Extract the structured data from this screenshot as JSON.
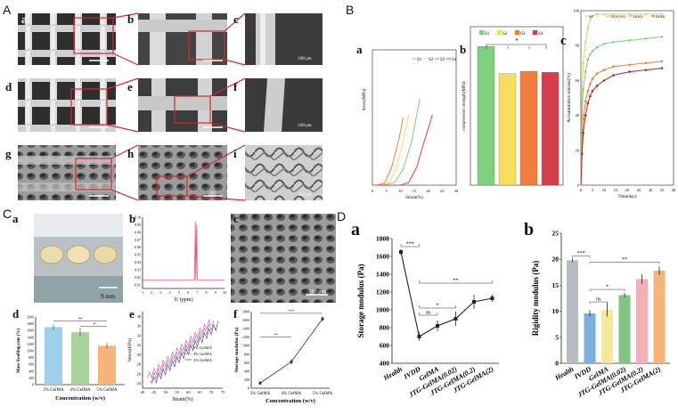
{
  "sections": {
    "A": "A",
    "B": "B",
    "C": "C",
    "D": "D"
  },
  "panel_letters": {
    "Aa": "a",
    "Ab": "b",
    "Ac": "c",
    "Ad": "d",
    "Ae": "e",
    "Af": "f",
    "Ag": "g",
    "Ah": "h",
    "Ai": "i",
    "Ba": "a",
    "Bb": "b",
    "Bc": "c",
    "Ca": "a",
    "Cb": "b",
    "Cc": "c",
    "Cd": "d",
    "Ce": "e",
    "Cf": "f",
    "Da": "a",
    "Db": "b"
  },
  "scale_bars": {
    "Ac": "100 μm",
    "Af": "100 μm",
    "Ai": "100 μm",
    "Ah": "200",
    "Ca": "9 mm",
    "Cc": "100 μm"
  },
  "colors": {
    "S1": "#7ed07f",
    "S2": "#f6dd5e",
    "S3": "#f07d3e",
    "S4": "#d53f4c",
    "red": "#d62728"
  },
  "chart_data": [
    {
      "id": "Ba",
      "type": "line",
      "ylabel": "Stress(MPa)",
      "xlabel": "Strain(%)",
      "xticks": [
        "0",
        "5",
        "10",
        "15",
        "20",
        "25",
        "30"
      ],
      "legend": [
        "S1",
        "S2",
        "S3",
        "S4"
      ],
      "series": [
        {
          "name": "S1",
          "x": [
            0,
            4,
            8,
            11,
            14,
            17
          ],
          "y": [
            0,
            0,
            0.2,
            1.2,
            3.2,
            6.4
          ]
        },
        {
          "name": "S2",
          "x": [
            0,
            3,
            6,
            8.5,
            11,
            13
          ],
          "y": [
            0,
            0,
            0.2,
            1.2,
            3.2,
            5.2
          ]
        },
        {
          "name": "S3",
          "x": [
            0,
            2,
            4.5,
            7,
            9.5,
            11
          ],
          "y": [
            0,
            0,
            0.2,
            1.4,
            3.4,
            5.0
          ]
        },
        {
          "name": "S4",
          "x": [
            0,
            10,
            13,
            16,
            18.5,
            21.5
          ],
          "y": [
            0,
            0,
            0.2,
            1.4,
            3.2,
            5.2
          ]
        }
      ],
      "xlim": [
        0,
        30
      ],
      "ylim": [
        0,
        10
      ]
    },
    {
      "id": "Bb",
      "type": "bar",
      "ylabel": "compressive strength(MPa)",
      "categories": [
        "S1",
        "S2",
        "S3",
        "S4"
      ],
      "values": [
        28,
        22.5,
        23,
        22.8
      ],
      "ylim": [
        0,
        32
      ],
      "sig": "*"
    },
    {
      "id": "Bc",
      "type": "line",
      "ylabel": "Accumulative release(%)",
      "xlabel": "Time(day)",
      "xticks": [
        "0",
        "5",
        "10",
        "15",
        "20",
        "25",
        "30",
        "35",
        "40"
      ],
      "yticks": [
        "0",
        "20",
        "40",
        "60",
        "80",
        "100"
      ],
      "legend": [
        "S4",
        "IS(S1/S3)",
        "IS(S3)",
        "IS(S4)"
      ],
      "series": [
        {
          "name": "S4",
          "color": "#f6c85e",
          "x": [
            0,
            0.5,
            1,
            2,
            3,
            4,
            5,
            7,
            10,
            14,
            21,
            28,
            35
          ],
          "y": [
            0,
            55,
            70,
            82,
            90,
            95,
            97,
            98,
            98,
            98,
            98,
            98,
            98
          ]
        },
        {
          "name": "IS(S1/S3)",
          "color": "#7ed07f",
          "x": [
            0,
            0.5,
            1,
            2,
            3,
            4,
            5,
            7,
            10,
            14,
            21,
            28,
            35
          ],
          "y": [
            0,
            40,
            55,
            65,
            72,
            75,
            77,
            79,
            81,
            82,
            83,
            84,
            85
          ]
        },
        {
          "name": "IS(S3)",
          "color": "#f07d3e",
          "x": [
            0,
            0.5,
            1,
            2,
            3,
            4,
            5,
            7,
            10,
            14,
            21,
            28,
            35
          ],
          "y": [
            0,
            25,
            38,
            48,
            54,
            58,
            61,
            64,
            66,
            68,
            69,
            70,
            71
          ]
        },
        {
          "name": "IS(S4)",
          "color": "#a8242f",
          "x": [
            0,
            0.5,
            1,
            2,
            3,
            4,
            5,
            7,
            10,
            14,
            21,
            28,
            35
          ],
          "y": [
            0,
            18,
            30,
            40,
            47,
            51,
            54,
            57,
            60,
            63,
            65,
            66,
            67
          ]
        }
      ],
      "xlim": [
        0,
        40
      ],
      "ylim": [
        0,
        100
      ]
    },
    {
      "id": "Cb",
      "type": "line",
      "xlabel": "f1 (ppm)",
      "xticks": [
        "1",
        "2",
        "3",
        "4",
        "5",
        "6",
        "7",
        "8",
        "9",
        "10"
      ],
      "yticks": [
        "0.01",
        "0.02",
        "0.03",
        "0.04",
        "0.05",
        "0.06",
        "0.07",
        "0.08",
        "0.09",
        "0.10"
      ],
      "ylim": [
        0.005,
        0.1
      ]
    },
    {
      "id": "Cd",
      "type": "bar",
      "ylabel": "Mass Swelling rate (%)",
      "xlabel": "Concentration (w/v)",
      "categories": [
        "3% GelMA",
        "4% GelMA",
        "5% GelMA"
      ],
      "values": [
        1700,
        1550,
        1150
      ],
      "errors": [
        80,
        130,
        80
      ],
      "colors": [
        "#9ed0ee",
        "#a8d49a",
        "#f4b47a"
      ],
      "yticks": [
        "0",
        "200",
        "400",
        "600",
        "800",
        "1000",
        "1200",
        "1400",
        "1600",
        "1800",
        "2000"
      ],
      "ylim": [
        0,
        2000
      ],
      "sig": [
        "**",
        "*"
      ]
    },
    {
      "id": "Ce",
      "type": "line",
      "ylabel": "Stress(KPa)",
      "xlabel": "Strain(%)",
      "xticks": [
        "40",
        "45",
        "50",
        "55",
        "60",
        "65",
        "70",
        "75"
      ],
      "yticks": [
        "24",
        "26",
        "28",
        "30",
        "32",
        "34",
        "36",
        "38"
      ],
      "legend": [
        "5% GelMA",
        "4% GelMA",
        "3% GelMA"
      ],
      "xlim": [
        40,
        75
      ],
      "ylim": [
        23,
        39
      ]
    },
    {
      "id": "Cf",
      "type": "line",
      "ylabel": "Storage modulus (Pa)",
      "xlabel": "Concentration (w/v)",
      "categories": [
        "3% GelMA",
        "4% GelMA",
        "5% GelMA"
      ],
      "values": [
        120,
        620,
        1630
      ],
      "errors": [
        40,
        70,
        60
      ],
      "yticks": [
        "0",
        "200",
        "400",
        "600",
        "800",
        "1000",
        "1200",
        "1400",
        "1600",
        "1800"
      ],
      "ylim": [
        0,
        1800
      ],
      "sig": [
        "**",
        "***"
      ]
    },
    {
      "id": "Da",
      "type": "line",
      "ylabel": "Storage modulus (Pa)",
      "categories": [
        "Health",
        "IVDD",
        "GelMA",
        "JTG-GelMA(0.02)",
        "JTG-GelMA(0.2)",
        "JTG-GelMA(2)"
      ],
      "values": [
        1650,
        700,
        820,
        900,
        1090,
        1130
      ],
      "errors": [
        30,
        50,
        60,
        80,
        80,
        40
      ],
      "yticks": [
        "400",
        "600",
        "800",
        "1000",
        "1200",
        "1400",
        "1600",
        "1800"
      ],
      "ylim": [
        400,
        1800
      ],
      "sig": [
        "***",
        "ns",
        "*",
        "**"
      ]
    },
    {
      "id": "Db",
      "type": "bar",
      "ylabel": "Rigidity modulus (Pa)",
      "categories": [
        "Health",
        "IVDD",
        "GelMA",
        "JTG-GelMA(0.02)",
        "JTG-GelMA(0.2)",
        "JTG-GelMA(2)"
      ],
      "values": [
        19.8,
        9.6,
        10.3,
        13.1,
        16.2,
        17.8
      ],
      "errors": [
        0.3,
        0.6,
        1.3,
        0.4,
        0.9,
        0.8
      ],
      "colors": [
        "#b7bcc2",
        "#7bb0dd",
        "#f7e79a",
        "#7fc47f",
        "#f4b0b9",
        "#f6b47a"
      ],
      "yticks": [
        "0",
        "5",
        "10",
        "15",
        "20",
        "25"
      ],
      "ylim": [
        0,
        25
      ],
      "sig": [
        "***",
        "ns",
        "*",
        "**"
      ]
    }
  ]
}
